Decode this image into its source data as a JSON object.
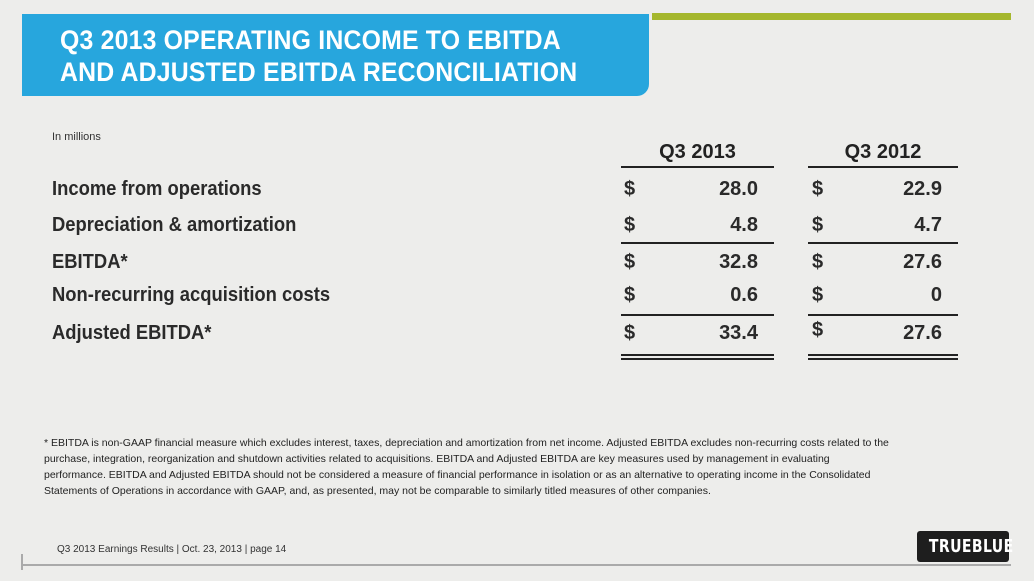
{
  "title": "Q3 2013 OPERATING INCOME TO EBITDA\nAND ADJUSTED EBITDA RECONCILIATION",
  "units_note": "In millions",
  "columns": [
    "Q3 2013",
    "Q3 2012"
  ],
  "currency_symbol": "$",
  "rows": [
    {
      "label": "Income from operations",
      "q3_2013": "28.0",
      "q3_2012": "22.9"
    },
    {
      "label": "Depreciation & amortization",
      "q3_2013": "4.8",
      "q3_2012": "4.7"
    },
    {
      "label": "EBITDA*",
      "q3_2013": "32.8",
      "q3_2012": "27.6"
    },
    {
      "label": "Non-recurring acquisition costs",
      "q3_2013": "0.6",
      "q3_2012": "0"
    },
    {
      "label": "Adjusted EBITDA*",
      "q3_2013": "33.4",
      "q3_2012": "27.6"
    }
  ],
  "footnote": "* EBITDA is non-GAAP financial measure which excludes interest, taxes, depreciation and amortization from net income. Adjusted EBITDA excludes non-recurring costs related to the purchase, integration, reorganization and shutdown activities related to acquisitions. EBITDA and Adjusted EBITDA are key measures used by management in evaluating performance. EBITDA and Adjusted EBITDA should not be considered a measure of financial performance in isolation or as an alternative to operating income in the Consolidated Statements of Operations in accordance with GAAP, and, as presented, may not be comparable to similarly titled measures of other companies.",
  "footer": "Q3 2013 Earnings Results | Oct. 23, 2013  | page 14",
  "logo_text": "TRUEBLUE",
  "colors": {
    "title_bg": "#27a6dd",
    "accent_bar": "#a5b72d"
  }
}
